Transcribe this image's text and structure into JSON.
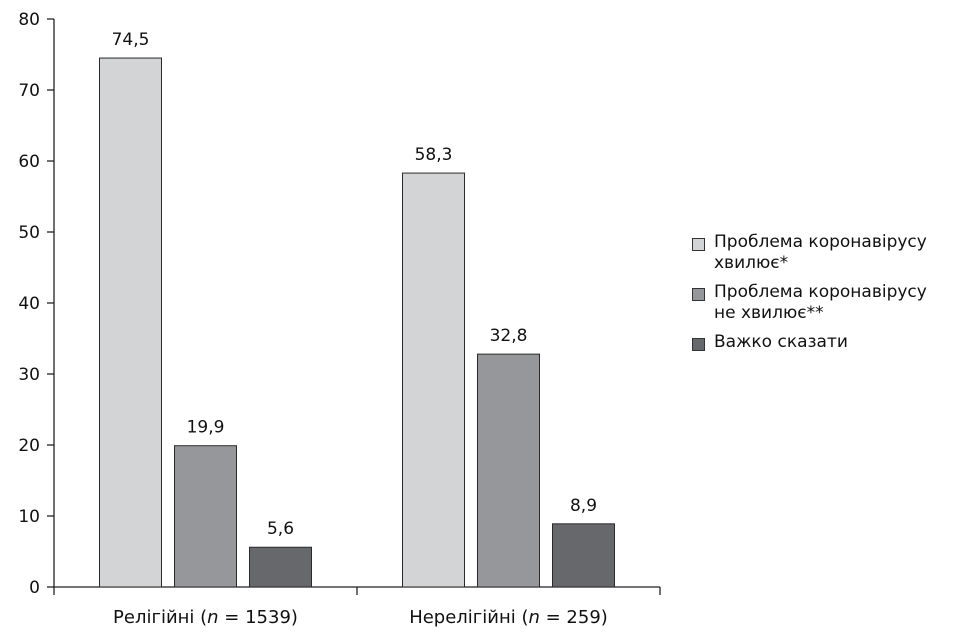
{
  "chart_data": {
    "type": "bar",
    "categories": [
      "Релігійні (n = 1539)",
      "Нерелігійні (n = 259)"
    ],
    "category_parts": [
      {
        "pre": "Релігійні (",
        "n": "n",
        "post": " = 1539)"
      },
      {
        "pre": "Нерелігійні (",
        "n": "n",
        "post": " = 259)"
      }
    ],
    "series": [
      {
        "name": "Проблема коронавірусу хвилює*",
        "color": "#d3d4d6",
        "values": [
          74.5,
          58.3
        ],
        "labels": [
          "74,5",
          "58,3"
        ]
      },
      {
        "name": "Проблема коронавірусу не хвилює**",
        "color": "#96979a",
        "values": [
          19.9,
          32.8
        ],
        "labels": [
          "19,9",
          "32,8"
        ]
      },
      {
        "name": "Важко сказати",
        "color": "#67686c",
        "values": [
          5.6,
          8.9
        ],
        "labels": [
          "5,6",
          "8,9"
        ]
      }
    ],
    "legend_display": [
      "Проблема коронавірусу\nхвилює*",
      "Проблема коронавірусу\nне хвилює**",
      "Важко сказати"
    ],
    "ylim": [
      0,
      80
    ],
    "yticks": [
      0,
      10,
      20,
      30,
      40,
      50,
      60,
      70,
      80
    ],
    "grid": false,
    "legend_position": "right"
  }
}
